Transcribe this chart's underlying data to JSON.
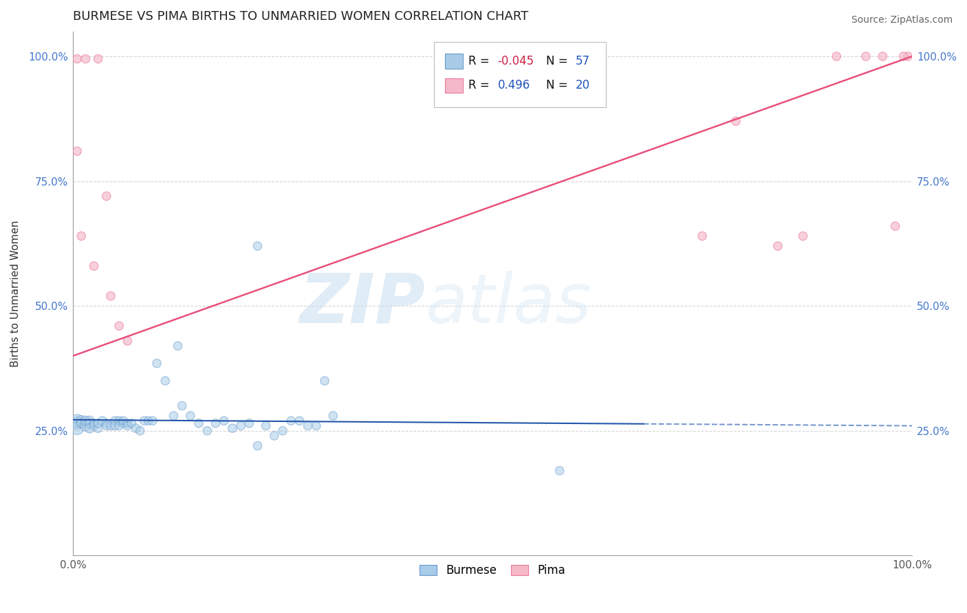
{
  "title": "BURMESE VS PIMA BIRTHS TO UNMARRIED WOMEN CORRELATION CHART",
  "source": "Source: ZipAtlas.com",
  "ylabel": "Births to Unmarried Women",
  "xlim": [
    0.0,
    1.0
  ],
  "ylim": [
    0.0,
    1.05
  ],
  "xticks": [
    0.0,
    0.25,
    0.5,
    0.75,
    1.0
  ],
  "xticklabels": [
    "0.0%",
    "",
    "",
    "",
    "100.0%"
  ],
  "yticks": [
    0.25,
    0.5,
    0.75,
    1.0
  ],
  "yticklabels_left": [
    "25.0%",
    "50.0%",
    "75.0%",
    "100.0%"
  ],
  "yticklabels_right": [
    "25.0%",
    "50.0%",
    "75.0%",
    "100.0%"
  ],
  "burmese_color": "#a8cce8",
  "pima_color": "#f5b8c8",
  "burmese_edge": "#6699cc",
  "pima_edge": "#e87898",
  "legend_R_burmese": "-0.045",
  "legend_N_burmese": "57",
  "legend_R_pima": "0.496",
  "legend_N_pima": "20",
  "burmese_trend_color": "#2255aa",
  "pima_trend_color": "#e8507a",
  "watermark_zip": "ZIP",
  "watermark_atlas": "atlas",
  "burmese_x": [
    0.005,
    0.005,
    0.005,
    0.01,
    0.01,
    0.015,
    0.015,
    0.02,
    0.02,
    0.02,
    0.025,
    0.025,
    0.03,
    0.03,
    0.035,
    0.04,
    0.04,
    0.045,
    0.05,
    0.05,
    0.055,
    0.055,
    0.06,
    0.06,
    0.065,
    0.065,
    0.07,
    0.075,
    0.08,
    0.085,
    0.09,
    0.095,
    0.1,
    0.11,
    0.12,
    0.13,
    0.14,
    0.15,
    0.16,
    0.17,
    0.18,
    0.19,
    0.2,
    0.21,
    0.22,
    0.23,
    0.24,
    0.25,
    0.26,
    0.27,
    0.28,
    0.29,
    0.3,
    0.31,
    0.58,
    0.22,
    0.125
  ],
  "burmese_y": [
    0.265,
    0.27,
    0.255,
    0.27,
    0.265,
    0.26,
    0.27,
    0.27,
    0.265,
    0.255,
    0.265,
    0.26,
    0.255,
    0.265,
    0.27,
    0.265,
    0.26,
    0.26,
    0.27,
    0.26,
    0.27,
    0.26,
    0.265,
    0.27,
    0.265,
    0.26,
    0.265,
    0.255,
    0.25,
    0.27,
    0.27,
    0.27,
    0.385,
    0.35,
    0.28,
    0.3,
    0.28,
    0.265,
    0.25,
    0.265,
    0.27,
    0.255,
    0.26,
    0.265,
    0.22,
    0.26,
    0.24,
    0.25,
    0.27,
    0.27,
    0.26,
    0.26,
    0.35,
    0.28,
    0.17,
    0.62,
    0.42
  ],
  "burmese_sizes_scale": [
    180,
    180,
    180,
    120,
    100,
    120,
    100,
    100,
    100,
    100,
    80,
    80,
    80,
    80,
    80,
    80,
    80,
    80,
    80,
    80,
    80,
    80,
    80,
    80,
    80,
    80,
    80,
    80,
    80,
    80,
    80,
    80,
    80,
    80,
    80,
    80,
    80,
    80,
    80,
    80,
    80,
    80,
    80,
    80,
    80,
    80,
    80,
    80,
    80,
    80,
    80,
    80,
    80,
    80,
    80,
    80,
    80
  ],
  "pima_x": [
    0.005,
    0.015,
    0.03,
    0.005,
    0.04,
    0.01,
    0.025,
    0.045,
    0.055,
    0.065,
    0.75,
    0.79,
    0.84,
    0.87,
    0.91,
    0.945,
    0.965,
    0.98,
    0.995,
    0.99
  ],
  "pima_y": [
    0.995,
    0.995,
    0.995,
    0.81,
    0.72,
    0.64,
    0.58,
    0.52,
    0.46,
    0.43,
    0.64,
    0.87,
    0.62,
    0.64,
    1.0,
    1.0,
    1.0,
    0.66,
    1.0,
    1.0
  ],
  "pima_sizes_scale": [
    80,
    80,
    80,
    80,
    80,
    80,
    80,
    80,
    80,
    80,
    80,
    80,
    80,
    80,
    80,
    80,
    80,
    80,
    80,
    80
  ],
  "trend_solid_end": 0.68,
  "title_fontsize": 13,
  "axis_label_fontsize": 11,
  "tick_fontsize": 11
}
